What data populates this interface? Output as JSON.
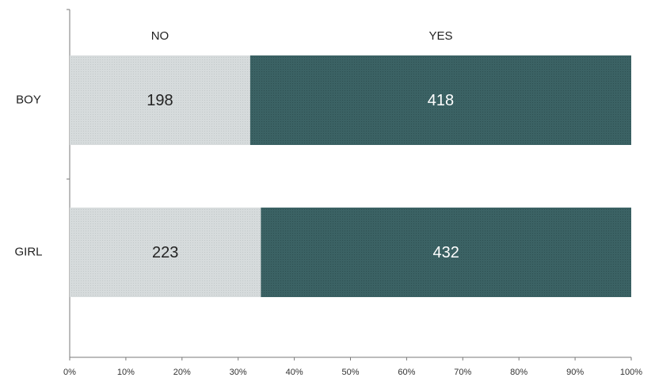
{
  "chart_data": {
    "type": "bar",
    "stacked": true,
    "normalized": true,
    "orientation": "horizontal",
    "categories": [
      "BOY",
      "GIRL"
    ],
    "series": [
      {
        "name": "NO",
        "values": [
          198,
          223
        ],
        "color": "#d4d9da"
      },
      {
        "name": "YES",
        "values": [
          418,
          432
        ],
        "color": "#3a6163"
      }
    ],
    "xticks": [
      "0%",
      "10%",
      "20%",
      "30%",
      "40%",
      "50%",
      "60%",
      "70%",
      "80%",
      "90%",
      "100%"
    ],
    "xlim": [
      0,
      100
    ],
    "legend_placement": "top",
    "grid": false
  },
  "colors": {
    "axis": "#7a7a7a",
    "label_dark": "#222222",
    "label_light": "#ffffff"
  }
}
